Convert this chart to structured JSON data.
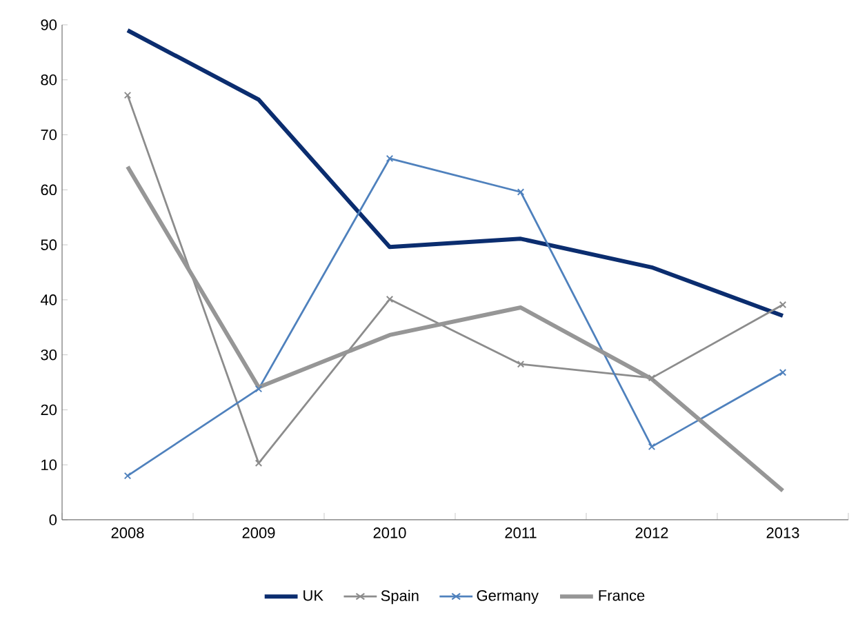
{
  "chart_data": {
    "type": "line",
    "categories": [
      "2008",
      "2009",
      "2010",
      "2011",
      "2012",
      "2013"
    ],
    "series": [
      {
        "name": "UK",
        "color": "#0b2d6f",
        "marker": "none",
        "values": [
          89,
          76.4,
          49.6,
          51.1,
          45.9,
          37.1
        ]
      },
      {
        "name": "Spain",
        "color": "#8c8c8c",
        "marker": "cross",
        "values": [
          77.2,
          10.3,
          40.1,
          28.3,
          25.8,
          39.1
        ]
      },
      {
        "name": "Germany",
        "color": "#4f81bd",
        "marker": "cross",
        "values": [
          8.0,
          23.8,
          65.7,
          59.6,
          13.3,
          26.8
        ]
      },
      {
        "name": "France",
        "color": "#969696",
        "marker": "none",
        "values": [
          64.2,
          24.1,
          33.6,
          38.6,
          25.6,
          5.3
        ]
      }
    ],
    "ylim": [
      0,
      90
    ],
    "yticks": [
      0,
      10,
      20,
      30,
      40,
      50,
      60,
      70,
      80,
      90
    ],
    "grid": false,
    "legend": "bottom",
    "line_style": "solid"
  }
}
